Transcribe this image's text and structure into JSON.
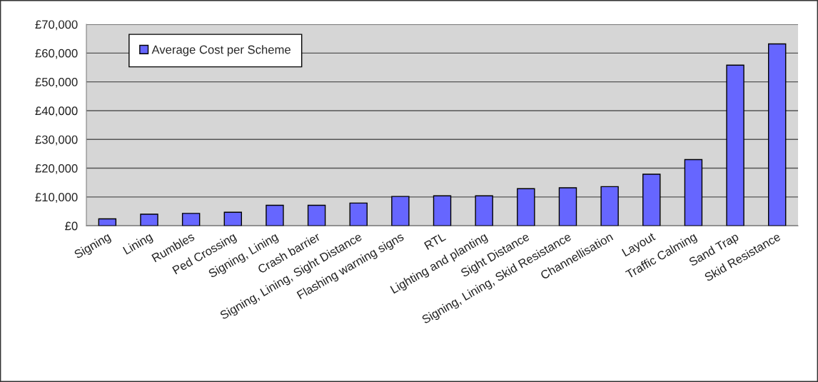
{
  "chart_data": {
    "type": "bar",
    "categories": [
      "Signing",
      "Lining",
      "Rumbles",
      "Ped Crossing",
      "Signing, Lining",
      "Crash barrier",
      "Signing, Lining, Sight Distance",
      "Flashing warning signs",
      "RTL",
      "Lighting and planting",
      "Sight Distance",
      "Signing, Lining, Skid Resistance",
      "Channellisation",
      "Layout",
      "Traffic Calming",
      "Sand Trap",
      "Skid Resistance"
    ],
    "series": [
      {
        "name": "Average Cost per Scheme",
        "color": "#6666ff",
        "values": [
          2400,
          4000,
          4300,
          4700,
          7100,
          7100,
          7900,
          10200,
          10400,
          10400,
          12900,
          13200,
          13600,
          17900,
          23000,
          55800,
          63200
        ]
      }
    ],
    "ylim": [
      0,
      70000
    ],
    "yticks": [
      {
        "value": 0,
        "label": "£0"
      },
      {
        "value": 10000,
        "label": "£10,000"
      },
      {
        "value": 20000,
        "label": "£20,000"
      },
      {
        "value": 30000,
        "label": "£30,000"
      },
      {
        "value": 40000,
        "label": "£40,000"
      },
      {
        "value": 50000,
        "label": "£50,000"
      },
      {
        "value": 60000,
        "label": "£60,000"
      },
      {
        "value": 70000,
        "label": "£70,000"
      }
    ],
    "grid": "y",
    "legend": "top left"
  }
}
